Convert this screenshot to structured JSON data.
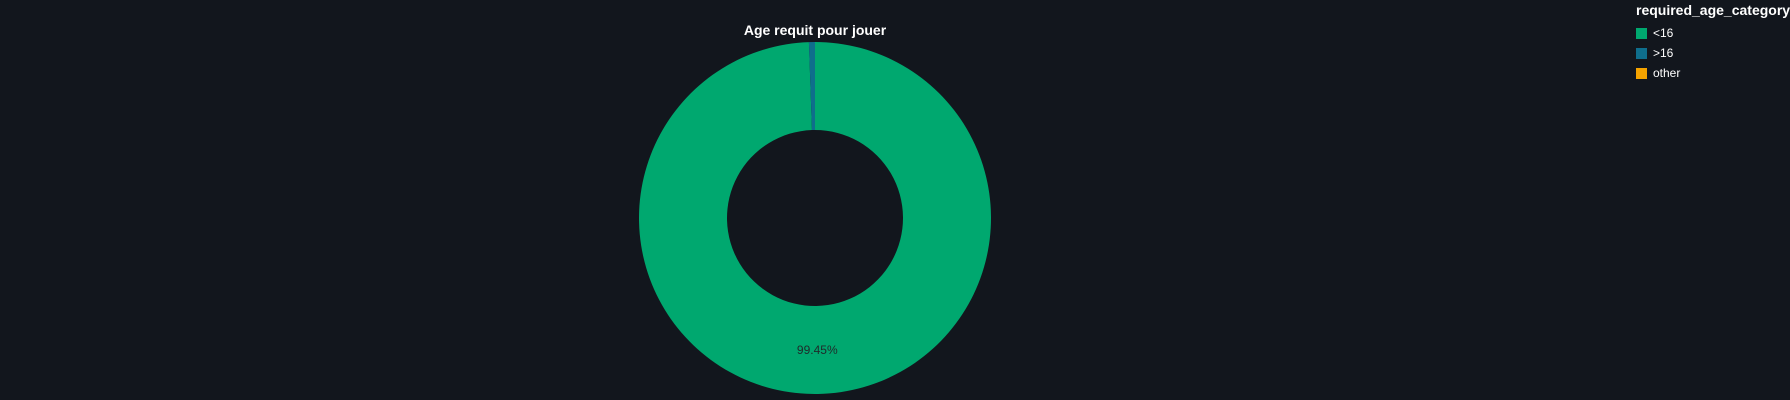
{
  "chart_data": {
    "type": "pie",
    "title": "Age requit pour jouer",
    "legend_title": "required_age_category",
    "legend_position": "top-right",
    "donut": true,
    "series": [
      {
        "name": "<16",
        "value": 99.45,
        "color": "#00a86f",
        "label": "99.45%"
      },
      {
        "name": ">16",
        "value": 0.55,
        "color": "#0f6e8c",
        "label": ""
      },
      {
        "name": "other",
        "value": 0.0,
        "color": "#f5a300",
        "label": ""
      }
    ]
  },
  "colors": {
    "background": "#12161d"
  }
}
